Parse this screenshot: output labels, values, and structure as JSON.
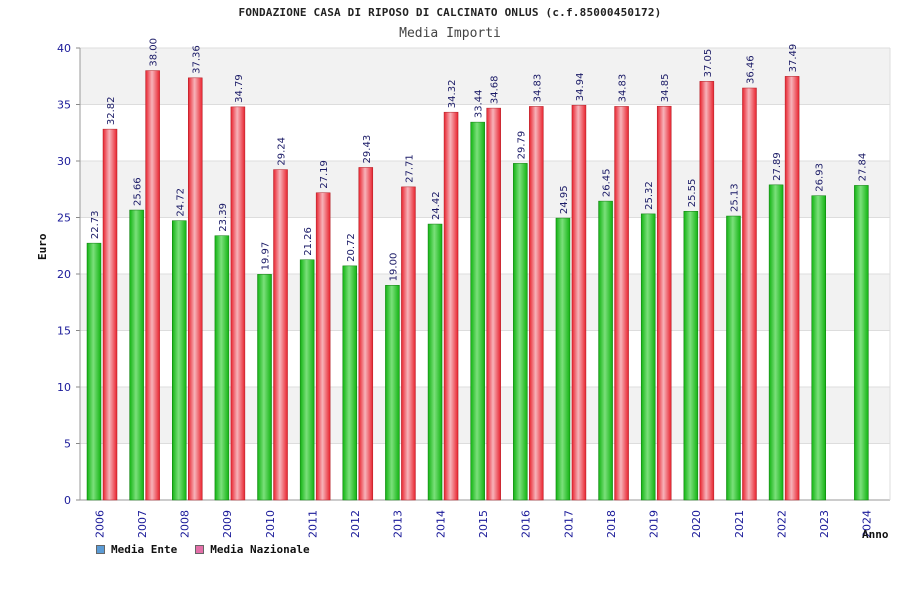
{
  "chart_data": {
    "type": "bar",
    "title": "FONDAZIONE CASA DI RIPOSO DI CALCINATO ONLUS (c.f.85000450172)",
    "subtitle": "Media Importi",
    "xlabel": "Anno",
    "ylabel": "Euro",
    "ylim": [
      0,
      40
    ],
    "yticks": [
      0,
      5,
      10,
      15,
      20,
      25,
      30,
      35,
      40
    ],
    "grid": true,
    "legend_position": "bottom-left",
    "categories": [
      "2006",
      "2007",
      "2008",
      "2009",
      "2010",
      "2011",
      "2012",
      "2013",
      "2014",
      "2015",
      "2016",
      "2017",
      "2018",
      "2019",
      "2020",
      "2021",
      "2022",
      "2023",
      "2024"
    ],
    "series": [
      {
        "name": "Media Ente",
        "legend_color": "#5b9bd5",
        "bar_color": "#12b312",
        "values": [
          22.73,
          25.66,
          24.72,
          23.39,
          19.97,
          21.26,
          20.72,
          19.0,
          24.42,
          33.44,
          29.79,
          24.95,
          26.45,
          25.32,
          25.55,
          25.13,
          27.89,
          26.93,
          27.84
        ],
        "labels": [
          "22.73",
          "25.66",
          "24.72",
          "23.39",
          "19.97",
          "21.26",
          "20.72",
          "19.00",
          "24.42",
          "33.44",
          "29.79",
          "24.95",
          "26.45",
          "25.32",
          "25.55",
          "25.13",
          "27.89",
          "26.93",
          "27.84"
        ]
      },
      {
        "name": "Media Nazionale",
        "legend_color": "#e36fa8",
        "bar_color": "#e8232e",
        "values": [
          32.82,
          38.0,
          37.36,
          34.79,
          29.24,
          27.19,
          29.43,
          27.71,
          34.32,
          34.68,
          34.83,
          34.94,
          34.83,
          34.85,
          37.05,
          36.46,
          37.49,
          null,
          null
        ],
        "labels": [
          "32.82",
          "38.00",
          "37.36",
          "34.79",
          "29.24",
          "27.19",
          "29.43",
          "27.71",
          "34.32",
          "34.68",
          "34.83",
          "34.94",
          "34.83",
          "34.85",
          "37.05",
          "36.46",
          "37.49",
          "",
          ""
        ]
      }
    ]
  }
}
